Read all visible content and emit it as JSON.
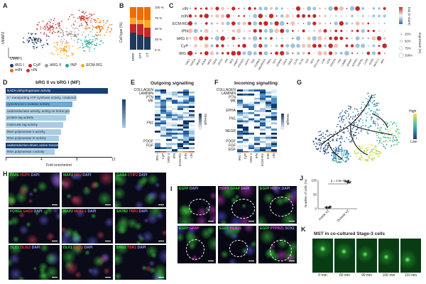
{
  "panels": {
    "A": "A",
    "B": "B",
    "C": "C",
    "D": "D",
    "E": "E",
    "F": "F",
    "G": "G",
    "H": "H",
    "I": "I",
    "J": "J",
    "K": "K"
  },
  "panelA": {
    "x_label": "UMAP1",
    "y_label": "UMAP2",
    "legend": [
      {
        "name": "tRG I",
        "color": "#1f3a5f"
      },
      {
        "name": "CyP",
        "color": "#c62828"
      },
      {
        "name": "bRG II",
        "color": "#9e9e9e"
      },
      {
        "name": "INP",
        "color": "#26a69a"
      },
      {
        "name": "ECM-RG",
        "color": "#f9a825"
      },
      {
        "name": "mIN",
        "color": "#ef6c00"
      },
      {
        "name": "cIN",
        "color": "#c0392b"
      }
    ]
  },
  "panelB": {
    "y_label": "Cell type (%)",
    "ticks": [
      "100 %",
      "75 %",
      "50 %",
      "25 %",
      "0 %"
    ],
    "columns": [
      "SRRF",
      "SFT",
      "CT"
    ]
  },
  "panelC": {
    "rows": [
      "cIN",
      "mIN",
      "ECM-RG",
      "IPN",
      "bRG II",
      "CyP",
      "tRG I"
    ],
    "legend_expr": "Exp (z-score)",
    "legend_pct": "Expression (%)",
    "pct_values": [
      "25%",
      "50%",
      "75%",
      "100%"
    ],
    "genes": [
      "TMC1",
      "TOP2A",
      "MKI67",
      "PCNA",
      "HES1",
      "PAX6",
      "SOX2",
      "VIM",
      "NES",
      "FABP7",
      "PTPRZ1",
      "HOPX",
      "TNC",
      "EOMES",
      "NEUROD1",
      "TBR1",
      "DCX",
      "STMN2",
      "GAD1",
      "GAD2",
      "DLX5",
      "DLX6",
      "SST",
      "NPY",
      "COL1A1",
      "LUM",
      "DCN",
      "POSTN",
      "FN1",
      "LAMB1",
      "SPARC",
      "NTRK2",
      "CNTN1",
      "LHX6",
      "SOX6",
      "NKX2-1",
      "ARX"
    ]
  },
  "panelD": {
    "title": "bRG II vs bRG I (MF)",
    "x_label": "Fold enrichment",
    "x_ticks": [
      "0",
      "4",
      "8",
      "12"
    ],
    "bars": [
      {
        "label": "NADH dehydrogenase activity",
        "fold": 11.5,
        "color": "#1a3f73"
      },
      {
        "label": "H⁺ transporting ATP synthase activity, rotational mechanism",
        "fold": 8.0,
        "color": "#b9d6ea"
      },
      {
        "label": "cytochrome-c oxidase activity",
        "fold": 7.5,
        "color": "#6fa8d0"
      },
      {
        "label": "oxidoreductase activity, acting on heme group donors",
        "fold": 7.2,
        "color": "#a9cce3"
      },
      {
        "label": "protein tag activity",
        "fold": 6.8,
        "color": "#a9cce3"
      },
      {
        "label": "molecular tag activity",
        "fold": 6.5,
        "color": "#a9cce3"
      },
      {
        "label": "RNA polymerase II activity",
        "fold": 6.2,
        "color": "#a9cce3"
      },
      {
        "label": "RNA polymerase III activity",
        "fold": 6.0,
        "color": "#a9cce3"
      },
      {
        "label": "oxidoreduction-driven active transmembrane transporter activity",
        "fold": 5.9,
        "color": "#1a3f73"
      },
      {
        "label": "RNA polymerase I activity",
        "fold": 5.5,
        "color": "#a9cce3"
      }
    ]
  },
  "panelE": {
    "title": "Outgoing signalling",
    "rows": [
      "COLLAGEN",
      "LAMININ",
      "PTN",
      "MK",
      "FN1",
      "PDGF",
      "FGF"
    ],
    "cols": [
      "tRG I",
      "CyP",
      "bRG II",
      "IPN",
      "ECM-RG",
      "mIN",
      "cIN"
    ],
    "legend": "Strength"
  },
  "panelF": {
    "title": "Incoming signalling",
    "rows": [
      "COLLAGEN",
      "LAMININ",
      "PTN",
      "MK",
      "EPHA",
      "FN1",
      "NEGR",
      "PDGF",
      "FGF",
      "EGF"
    ],
    "cols": [
      "tRG I",
      "CyP",
      "bRG II",
      "IPN",
      "ECM-RG",
      "mIN",
      "cIN"
    ],
    "legend": "Strength"
  },
  "panelG": {
    "legend_low": "Low",
    "legend_high": "High"
  },
  "panelH": {
    "tiles": [
      {
        "parts": [
          [
            "PAX6",
            "#33dd33"
          ],
          [
            " HOPX",
            "#ff3333"
          ],
          [
            " DAPI",
            "#9999ff"
          ]
        ]
      },
      {
        "parts": [
          [
            "MAP2",
            "#33dd33"
          ],
          [
            " NEU",
            "#ff3333"
          ],
          [
            " DAPI",
            "#9999ff"
          ]
        ]
      },
      {
        "parts": [
          [
            "GABA",
            "#33dd33"
          ],
          [
            " CTIP2",
            "#ff3333"
          ],
          [
            " DAPI",
            "#9999ff"
          ]
        ]
      },
      {
        "parts": [
          [
            "FOXG1",
            "#33dd33"
          ],
          [
            " GAD2",
            "#ff3333"
          ],
          [
            " DAPI",
            "#9999ff"
          ]
        ]
      },
      {
        "parts": [
          [
            "MAP2",
            "#33dd33"
          ],
          [
            " NKX2-1",
            "#ff3333"
          ],
          [
            " DAPI",
            "#9999ff"
          ]
        ]
      },
      {
        "parts": [
          [
            "SATB2",
            "#33dd33"
          ],
          [
            " TBR1",
            "#ff3333"
          ],
          [
            " DAPI",
            "#9999ff"
          ]
        ]
      },
      {
        "parts": [
          [
            "DLX1",
            "#33dd33"
          ],
          [
            " OLIG2",
            "#ff3333"
          ],
          [
            " DAPI",
            "#9999ff"
          ]
        ]
      },
      {
        "parts": [
          [
            "DLX1",
            "#33dd33"
          ],
          [
            " GAD1",
            "#ff3333"
          ],
          [
            " DAPI",
            "#9999ff"
          ]
        ]
      },
      {
        "parts": [
          [
            "BRN2",
            "#33dd33"
          ],
          [
            " TBR1",
            "#ff3333"
          ],
          [
            " DAPI",
            "#9999ff"
          ]
        ]
      }
    ]
  },
  "panelI": {
    "tiles": [
      {
        "parts": [
          [
            "EGFP",
            "#33dd33"
          ],
          [
            " DAPI",
            "#9999ff"
          ]
        ]
      },
      {
        "parts": [
          [
            "HOPX",
            "#ff44ff"
          ],
          [
            " GFAP",
            "#33dd33"
          ],
          [
            " DAPI",
            "#9999ff"
          ]
        ]
      },
      {
        "parts": [
          [
            "EGFP",
            "#33dd33"
          ],
          [
            " HOPX",
            "#ff44ff"
          ],
          [
            " DAPI",
            "#9999ff"
          ]
        ]
      },
      {
        "parts": [
          [
            "EGFP",
            "#33dd33"
          ],
          [
            " GFAP",
            "#ff44ff"
          ]
        ]
      },
      {
        "parts": [
          [
            "EGFP",
            "#33dd33"
          ],
          [
            " PEA15",
            "#ff44ff"
          ]
        ]
      },
      {
        "parts": [
          [
            "EGFP",
            "#33dd33"
          ],
          [
            " PTPRZ1",
            "#ff44ff"
          ],
          [
            " SOX2",
            "#9999ff"
          ]
        ]
      }
    ]
  },
  "panelJ": {
    "y_label": "Number of cells (%)",
    "y_ticks": [
      "100",
      "50",
      "0"
    ],
    "pvalue": "p = 2.6e-06",
    "categories": [
      "Inside VZ",
      "Outside VZ"
    ]
  },
  "panelK": {
    "title": "MST in co-cultured Stage-3 cells",
    "frames": [
      "0 min",
      "60 min",
      "90 min",
      "100 min",
      "110 min"
    ]
  },
  "chart_data": [
    {
      "type": "bar",
      "title": "bRG II vs bRG I (MF)",
      "categories": [
        "NADH dehydrogenase activity",
        "H⁺ transporting ATP synthase activity, rotational mechanism",
        "cytochrome-c oxidase activity",
        "oxidoreductase activity, acting on heme group donors",
        "protein tag activity",
        "molecular tag activity",
        "RNA polymerase II activity",
        "RNA polymerase III activity",
        "oxidoreduction-driven active transmembrane transporter activity",
        "RNA polymerase I activity"
      ],
      "values": [
        11.5,
        8.0,
        7.5,
        7.2,
        6.8,
        6.5,
        6.2,
        6.0,
        5.9,
        5.5
      ],
      "xlabel": "Fold enrichment",
      "ylabel": "",
      "xlim": [
        0,
        12
      ]
    },
    {
      "type": "bar",
      "title": "Cell type composition",
      "categories": [
        "SRRF",
        "SFT",
        "CT"
      ],
      "series": [
        {
          "name": "tRG I",
          "values": [
            40,
            35,
            30
          ]
        },
        {
          "name": "CyP",
          "values": [
            20,
            25,
            22
          ]
        },
        {
          "name": "ECM-RG",
          "values": [
            15,
            10,
            18
          ]
        },
        {
          "name": "mIN",
          "values": [
            25,
            30,
            30
          ]
        }
      ],
      "ylabel": "Cell type (%)",
      "ylim": [
        0,
        100
      ]
    },
    {
      "type": "scatter",
      "title": "",
      "categories": [
        "Inside VZ",
        "Outside VZ"
      ],
      "values": [
        5,
        95
      ],
      "ylabel": "Number of cells (%)",
      "ylim": [
        0,
        100
      ]
    }
  ]
}
